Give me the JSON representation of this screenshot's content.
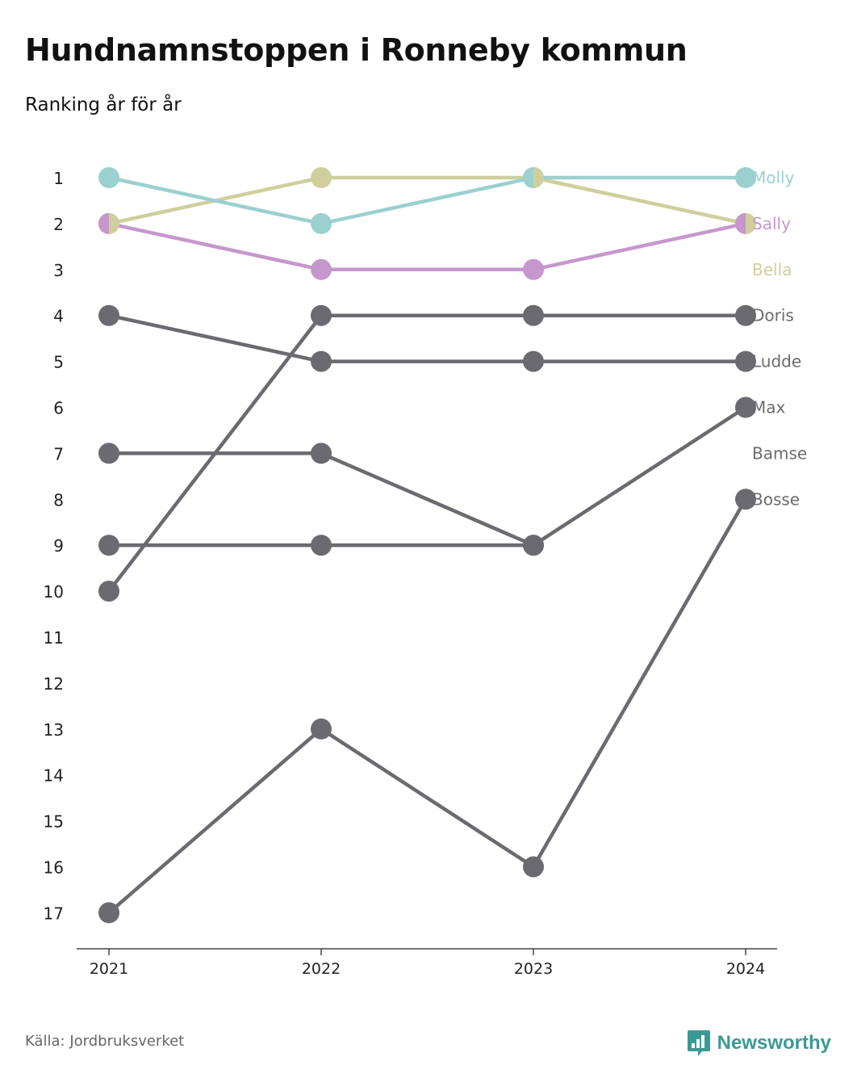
{
  "header": {
    "title": "Hundnamnstoppen i Ronneby kommun",
    "subtitle": "Ranking år för år"
  },
  "footer": {
    "source": "Källa: Jordbruksverket",
    "brand": "Newsworthy",
    "brand_icon": "newsworthy-chart-icon",
    "brand_color": "#3a9a93"
  },
  "chart_data": {
    "type": "line",
    "x": [
      "2021",
      "2022",
      "2023",
      "2024"
    ],
    "y_ticks": [
      "1",
      "2",
      "3",
      "4",
      "5",
      "6",
      "7",
      "8",
      "9",
      "10",
      "11",
      "12",
      "13",
      "14",
      "15",
      "16",
      "17"
    ],
    "ylim": [
      1,
      17
    ],
    "y_inverted": true,
    "grid": false,
    "series": [
      {
        "name": "Bosse",
        "values": [
          17,
          13,
          16,
          8
        ],
        "color": "#6b6a70"
      },
      {
        "name": "Bamse",
        "values": [
          9,
          9,
          9,
          null
        ],
        "color": "#6b6a70"
      },
      {
        "name": "Max",
        "values": [
          7,
          7,
          9,
          6
        ],
        "color": "#6b6a70"
      },
      {
        "name": "Ludde",
        "values": [
          4,
          5,
          5,
          5
        ],
        "color": "#6b6a70"
      },
      {
        "name": "Doris",
        "values": [
          10,
          4,
          4,
          4
        ],
        "color": "#6b6a70"
      },
      {
        "name": "Sally",
        "values": [
          2,
          3,
          3,
          2
        ],
        "color": "#c597cc"
      },
      {
        "name": "Bella",
        "values": [
          2,
          1,
          1,
          2
        ],
        "color": "#cfcf9d"
      },
      {
        "name": "Molly",
        "values": [
          1,
          2,
          1,
          1
        ],
        "color": "#9bd0cf"
      }
    ],
    "label_order": [
      "Molly",
      "Sally",
      "Bella",
      "Doris",
      "Ludde",
      "Max",
      "Bamse",
      "Bosse"
    ]
  }
}
